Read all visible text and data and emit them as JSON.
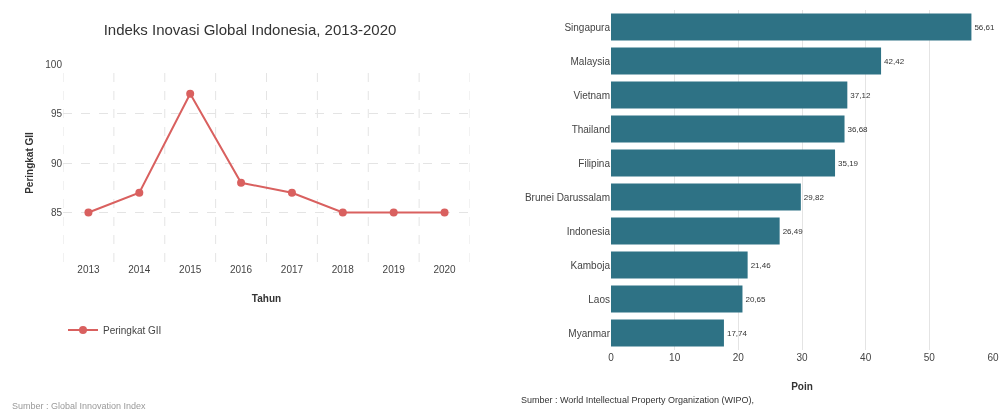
{
  "chart_data": [
    {
      "type": "line",
      "title": "Indeks Inovasi Global Indonesia, 2013-2020",
      "xlabel": "Tahun",
      "ylabel": "Peringkat GII",
      "categories": [
        "2013",
        "2014",
        "2015",
        "2016",
        "2017",
        "2018",
        "2019",
        "2020"
      ],
      "series": [
        {
          "name": "Peringkat GII",
          "color": "#d9605f",
          "values": [
            85,
            87,
            97,
            88,
            87,
            85,
            85,
            85
          ]
        }
      ],
      "ylim": [
        80,
        100
      ],
      "yticks": [
        85,
        90,
        95,
        100
      ],
      "grid": true,
      "legend": "bottom left",
      "marker": "circle",
      "line_style": "solid",
      "annotations": [
        "Sumber : Global Innovation Index"
      ]
    },
    {
      "type": "bar",
      "orientation": "horizontal",
      "xlabel": "Poin",
      "categories": [
        "Singapura",
        "Malaysia",
        "Vietnam",
        "Thailand",
        "Filipina",
        "Brunei Darussalam",
        "Indonesia",
        "Kamboja",
        "Laos",
        "Myanmar"
      ],
      "values": [
        56.61,
        42.42,
        37.12,
        36.68,
        35.19,
        29.82,
        26.49,
        21.46,
        20.65,
        17.74
      ],
      "color": "#2e7285",
      "value_labels": [
        "56,61",
        "42,42",
        "37,12",
        "36,68",
        "35,19",
        "29,82",
        "26,49",
        "21,46",
        "20,65",
        "17,74"
      ],
      "xlim": [
        0,
        60
      ],
      "xticks": [
        0,
        10,
        20,
        30,
        40,
        50,
        60
      ],
      "grid": "x",
      "annotations": [
        "Sumber : World Intellectual Property Organization (WIPO),"
      ]
    }
  ]
}
